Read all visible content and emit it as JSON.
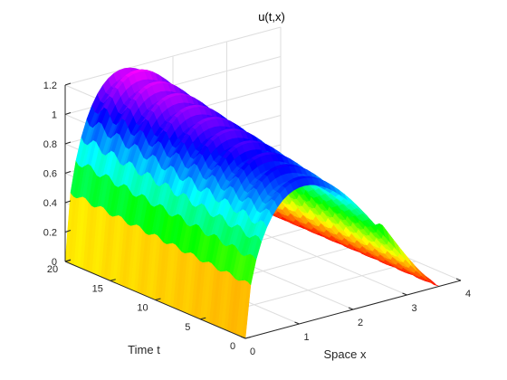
{
  "chart_data": {
    "type": "surface",
    "title": "u(t,x)",
    "xlabel": "Space x",
    "ylabel": "Time t",
    "zlabel": "",
    "xlim": [
      0,
      4
    ],
    "ylim": [
      0,
      20
    ],
    "zlim": [
      0,
      1.2
    ],
    "x_ticks": [
      "0",
      "1",
      "2",
      "3",
      "4"
    ],
    "y_ticks": [
      "0",
      "5",
      "10",
      "15",
      "20"
    ],
    "z_ticks": [
      "0",
      "0.2",
      "0.4",
      "0.6",
      "0.8",
      "1",
      "1.2"
    ],
    "grid": true,
    "colormap": "hsv",
    "surface": {
      "x_extent": [
        0,
        3.6
      ],
      "t_extent": [
        0,
        20
      ],
      "peak_value": 1.23,
      "peak_location": {
        "x": 0.5,
        "t": 20
      },
      "edge_value_x0": 0,
      "edge_value_xmax": 0,
      "value_at_t0_x_mid": 0.95,
      "oscillation_periods": 10
    }
  }
}
